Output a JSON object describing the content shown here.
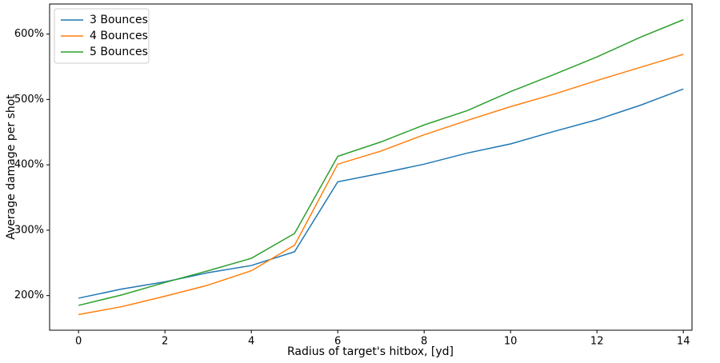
{
  "chart_data": {
    "type": "line",
    "x_label": "Radius of target's hitbox, [yd]",
    "y_label": "Average damage per shot",
    "x": [
      0,
      1,
      2,
      3,
      4,
      5,
      6,
      7,
      8,
      9,
      10,
      11,
      12,
      13,
      14
    ],
    "series": [
      {
        "name": "3 Bounces",
        "color": "#1f77b4",
        "values": [
          196,
          210,
          221,
          235,
          246,
          267,
          374,
          387,
          401,
          418,
          432,
          451,
          469,
          491,
          516
        ]
      },
      {
        "name": "4 Bounces",
        "color": "#ff7f0e",
        "values": [
          171,
          183,
          199,
          216,
          238,
          277,
          401,
          421,
          446,
          468,
          489,
          508,
          529,
          549,
          569
        ]
      },
      {
        "name": "5 Bounces",
        "color": "#2ca02c",
        "values": [
          185,
          201,
          220,
          238,
          257,
          295,
          413,
          435,
          461,
          483,
          512,
          538,
          565,
          595,
          622
        ]
      }
    ],
    "xlim": [
      -0.67,
      14.2
    ],
    "xticks": [
      0,
      2,
      4,
      6,
      8,
      10,
      12,
      14
    ],
    "ylim": [
      147,
      646
    ],
    "yticks": [
      {
        "value": 200,
        "label": "200%"
      },
      {
        "value": 300,
        "label": "300%"
      },
      {
        "value": 400,
        "label": "400%"
      },
      {
        "value": 500,
        "label": "500%"
      },
      {
        "value": 600,
        "label": "600%"
      }
    ],
    "legend": "upper left",
    "grid": false
  }
}
